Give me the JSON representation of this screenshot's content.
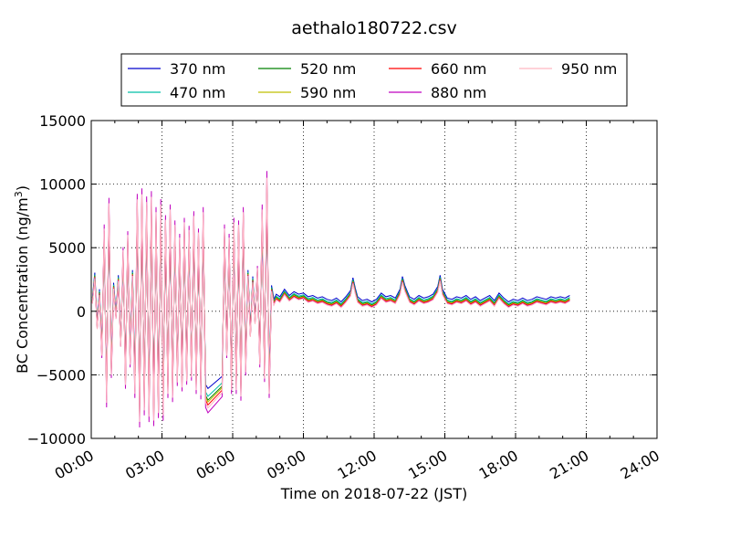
{
  "chart_data": {
    "type": "line",
    "title": "aethalo180722.csv",
    "xlabel": "Time on 2018-07-22 (JST)",
    "ylabel_main": "BC Concentration (ng/m",
    "ylabel_sup": "3",
    "ylabel_tail": ")",
    "xlim": [
      0,
      24
    ],
    "ylim": [
      -10000,
      15000
    ],
    "x_ticks": [
      0,
      3,
      6,
      9,
      12,
      15,
      18,
      21,
      24
    ],
    "x_tick_labels": [
      "00:00",
      "03:00",
      "06:00",
      "09:00",
      "12:00",
      "15:00",
      "18:00",
      "21:00",
      "24:00"
    ],
    "y_ticks": [
      -10000,
      -5000,
      0,
      5000,
      10000,
      15000
    ],
    "y_tick_labels": [
      "−10000",
      "−5000",
      "0",
      "5000",
      "10000",
      "15000"
    ],
    "grid": true,
    "legend_placement": "top (above plot)",
    "x_unit": "hours since 00:00",
    "series": [
      {
        "name": "370 nm",
        "color": "#0000cc",
        "offset": 240,
        "amp": 0.8
      },
      {
        "name": "470 nm",
        "color": "#00bfa8",
        "offset": 90,
        "amp": 0.88
      },
      {
        "name": "520 nm",
        "color": "#008000",
        "offset": 0,
        "amp": 0.92
      },
      {
        "name": "590 nm",
        "color": "#bfbf00",
        "offset": -60,
        "amp": 0.94
      },
      {
        "name": "660 nm",
        "color": "#ff0000",
        "offset": -120,
        "amp": 0.97
      },
      {
        "name": "880 nm",
        "color": "#bf00bf",
        "offset": -180,
        "amp": 1.05
      },
      {
        "name": "950 nm",
        "color": "#ffb6c1",
        "offset": -210,
        "amp": 1.0
      }
    ],
    "base_points": [
      [
        0.05,
        800
      ],
      [
        0.15,
        2800
      ],
      [
        0.25,
        -1200
      ],
      [
        0.35,
        1500
      ],
      [
        0.45,
        -3500
      ],
      [
        0.55,
        6500
      ],
      [
        0.65,
        -7200
      ],
      [
        0.75,
        8500
      ],
      [
        0.85,
        -5000
      ],
      [
        0.95,
        2000
      ],
      [
        1.05,
        -400
      ],
      [
        1.15,
        2600
      ],
      [
        1.25,
        -2600
      ],
      [
        1.35,
        4800
      ],
      [
        1.45,
        -5800
      ],
      [
        1.55,
        6000
      ],
      [
        1.65,
        -4200
      ],
      [
        1.75,
        3000
      ],
      [
        1.85,
        -6500
      ],
      [
        1.95,
        8800
      ],
      [
        2.05,
        -8700
      ],
      [
        2.15,
        9200
      ],
      [
        2.25,
        -7800
      ],
      [
        2.35,
        8600
      ],
      [
        2.45,
        -8300
      ],
      [
        2.55,
        9000
      ],
      [
        2.65,
        -8600
      ],
      [
        2.75,
        7800
      ],
      [
        2.85,
        -8000
      ],
      [
        2.95,
        8400
      ],
      [
        3.05,
        -8200
      ],
      [
        3.15,
        7200
      ],
      [
        3.25,
        -6500
      ],
      [
        3.35,
        8000
      ],
      [
        3.45,
        -6800
      ],
      [
        3.55,
        6800
      ],
      [
        3.65,
        -5600
      ],
      [
        3.75,
        5800
      ],
      [
        3.85,
        -6000
      ],
      [
        3.95,
        7000
      ],
      [
        4.05,
        -5500
      ],
      [
        4.15,
        6400
      ],
      [
        4.25,
        -5200
      ],
      [
        4.35,
        7500
      ],
      [
        4.45,
        -6200
      ],
      [
        4.55,
        6200
      ],
      [
        4.65,
        -6600
      ],
      [
        4.75,
        7800
      ],
      [
        4.85,
        -7200
      ],
      [
        4.95,
        -7600
      ],
      [
        5.55,
        -6400
      ],
      [
        5.65,
        6500
      ],
      [
        5.75,
        -3500
      ],
      [
        5.85,
        5800
      ],
      [
        5.95,
        -6200
      ],
      [
        6.05,
        7000
      ],
      [
        6.15,
        -6200
      ],
      [
        6.25,
        6800
      ],
      [
        6.35,
        -6700
      ],
      [
        6.45,
        7800
      ],
      [
        6.55,
        -4800
      ],
      [
        6.65,
        3000
      ],
      [
        6.75,
        -1800
      ],
      [
        6.85,
        2500
      ],
      [
        6.95,
        -800
      ],
      [
        7.05,
        3400
      ],
      [
        7.15,
        -4200
      ],
      [
        7.25,
        8000
      ],
      [
        7.35,
        -5300
      ],
      [
        7.45,
        10500
      ],
      [
        7.55,
        -6500
      ],
      [
        7.65,
        1800
      ],
      [
        7.75,
        700
      ],
      [
        7.85,
        1100
      ],
      [
        8.0,
        900
      ],
      [
        8.2,
        1500
      ],
      [
        8.4,
        1000
      ],
      [
        8.6,
        1300
      ],
      [
        8.8,
        1100
      ],
      [
        9.0,
        1200
      ],
      [
        9.2,
        900
      ],
      [
        9.4,
        1000
      ],
      [
        9.6,
        800
      ],
      [
        9.8,
        900
      ],
      [
        10.0,
        700
      ],
      [
        10.2,
        600
      ],
      [
        10.4,
        800
      ],
      [
        10.6,
        500
      ],
      [
        10.8,
        900
      ],
      [
        11.0,
        1400
      ],
      [
        11.1,
        2400
      ],
      [
        11.2,
        1600
      ],
      [
        11.3,
        900
      ],
      [
        11.5,
        600
      ],
      [
        11.7,
        700
      ],
      [
        11.9,
        500
      ],
      [
        12.1,
        700
      ],
      [
        12.3,
        1200
      ],
      [
        12.5,
        900
      ],
      [
        12.7,
        1000
      ],
      [
        12.9,
        800
      ],
      [
        13.1,
        1500
      ],
      [
        13.2,
        2500
      ],
      [
        13.3,
        1800
      ],
      [
        13.5,
        900
      ],
      [
        13.7,
        700
      ],
      [
        13.9,
        1000
      ],
      [
        14.1,
        800
      ],
      [
        14.3,
        900
      ],
      [
        14.5,
        1100
      ],
      [
        14.7,
        1700
      ],
      [
        14.8,
        2600
      ],
      [
        14.9,
        1500
      ],
      [
        15.1,
        800
      ],
      [
        15.3,
        700
      ],
      [
        15.5,
        900
      ],
      [
        15.7,
        800
      ],
      [
        15.9,
        1000
      ],
      [
        16.1,
        700
      ],
      [
        16.3,
        900
      ],
      [
        16.5,
        600
      ],
      [
        16.7,
        800
      ],
      [
        16.9,
        1000
      ],
      [
        17.1,
        600
      ],
      [
        17.3,
        1200
      ],
      [
        17.5,
        800
      ],
      [
        17.7,
        500
      ],
      [
        17.9,
        700
      ],
      [
        18.1,
        600
      ],
      [
        18.3,
        800
      ],
      [
        18.5,
        600
      ],
      [
        18.7,
        700
      ],
      [
        18.9,
        900
      ],
      [
        19.1,
        800
      ],
      [
        19.3,
        700
      ],
      [
        19.5,
        900
      ],
      [
        19.7,
        800
      ],
      [
        19.9,
        900
      ],
      [
        20.1,
        800
      ],
      [
        20.3,
        1000
      ]
    ]
  }
}
